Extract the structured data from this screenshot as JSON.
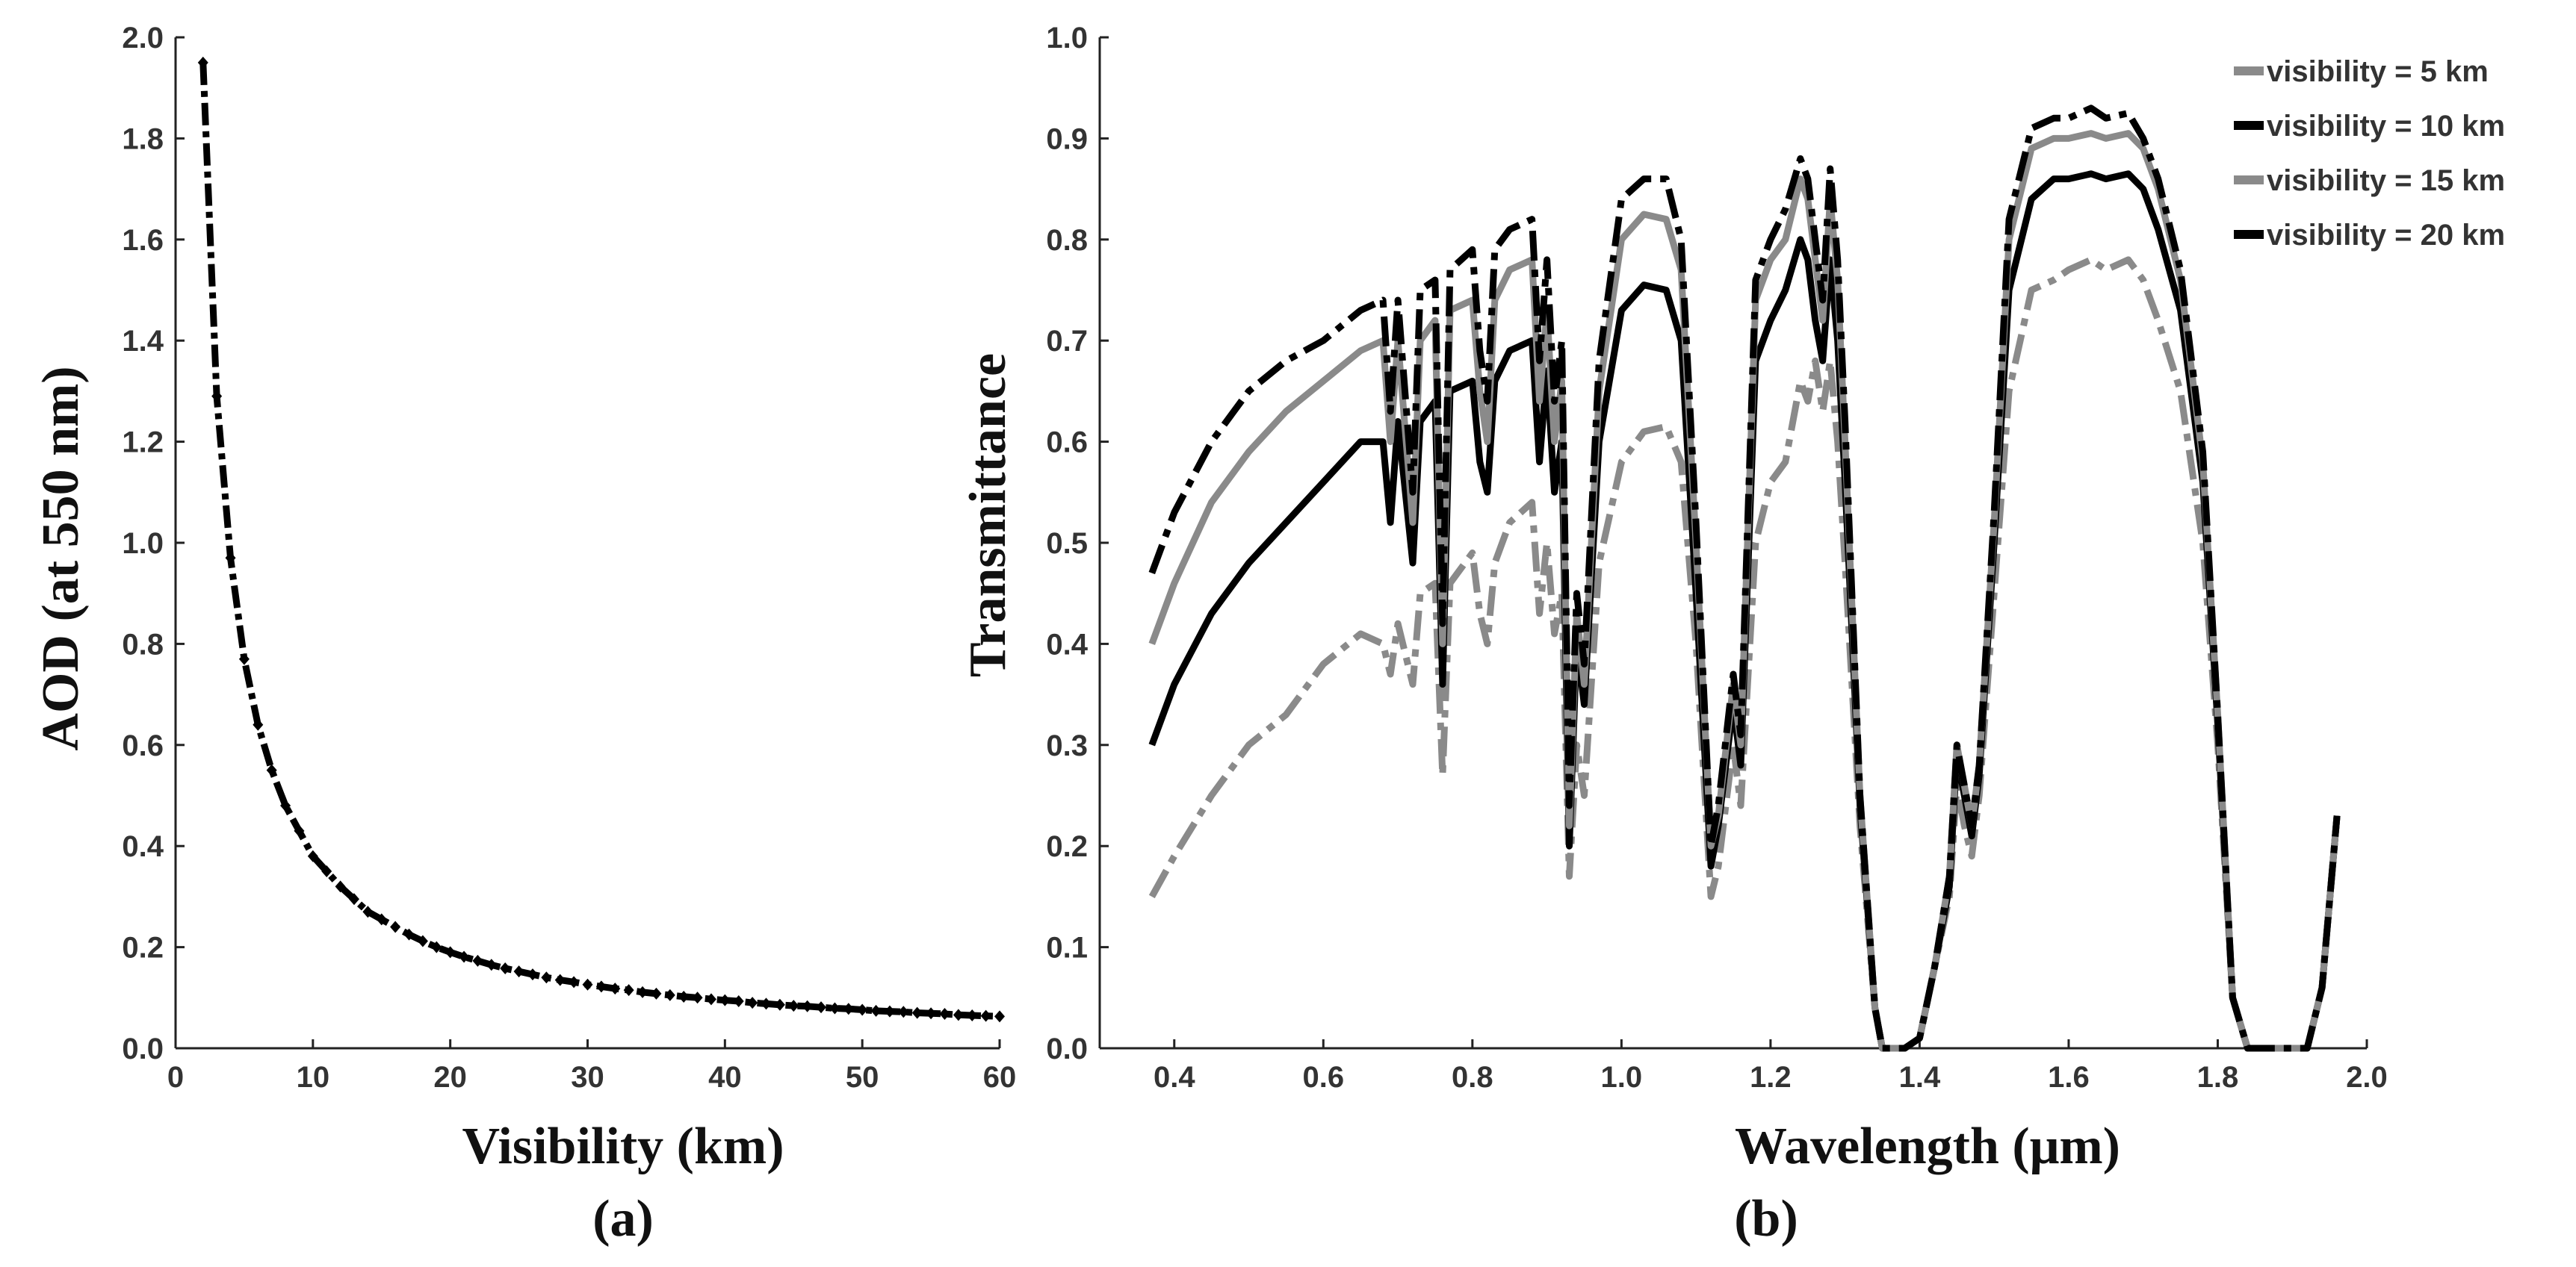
{
  "chart_data": [
    {
      "type": "line",
      "panel": "(a)",
      "xlabel": "Visibility (km)",
      "ylabel": "AOD (at 550 nm)",
      "xlim": [
        0,
        60
      ],
      "ylim": [
        0,
        2.0
      ],
      "xticks": [
        "0",
        "10",
        "20",
        "30",
        "40",
        "50",
        "60"
      ],
      "yticks": [
        "0.0",
        "0.2",
        "0.4",
        "0.6",
        "0.8",
        "1.0",
        "1.2",
        "1.4",
        "1.6",
        "1.8",
        "2.0"
      ],
      "series": [
        {
          "name": "AOD",
          "color": "#000000",
          "x": [
            2,
            3,
            4,
            5,
            6,
            7,
            8,
            9,
            10,
            11,
            12,
            13,
            14,
            15,
            16,
            17,
            18,
            19,
            20,
            21,
            22,
            23,
            24,
            25,
            26,
            27,
            28,
            29,
            30,
            31,
            32,
            33,
            34,
            35,
            36,
            37,
            38,
            39,
            40,
            41,
            42,
            43,
            44,
            45,
            46,
            47,
            48,
            49,
            50,
            51,
            52,
            53,
            54,
            55,
            56,
            57,
            58,
            59,
            60
          ],
          "y": [
            1.95,
            1.29,
            0.97,
            0.77,
            0.64,
            0.55,
            0.48,
            0.43,
            0.38,
            0.35,
            0.32,
            0.295,
            0.27,
            0.255,
            0.24,
            0.225,
            0.212,
            0.2,
            0.19,
            0.181,
            0.173,
            0.165,
            0.158,
            0.152,
            0.146,
            0.14,
            0.135,
            0.131,
            0.126,
            0.122,
            0.118,
            0.115,
            0.111,
            0.108,
            0.105,
            0.102,
            0.1,
            0.097,
            0.095,
            0.093,
            0.09,
            0.088,
            0.086,
            0.084,
            0.083,
            0.081,
            0.079,
            0.078,
            0.076,
            0.074,
            0.073,
            0.072,
            0.07,
            0.069,
            0.068,
            0.066,
            0.065,
            0.064,
            0.063
          ]
        }
      ]
    },
    {
      "type": "line",
      "panel": "(b)",
      "xlabel": "Wavelength (μm)",
      "ylabel": "Transmittance",
      "xlim": [
        0.3,
        2.0
      ],
      "ylim": [
        0,
        1.0
      ],
      "xticks": [
        "0.4",
        "0.6",
        "0.8",
        "1.0",
        "1.2",
        "1.4",
        "1.6",
        "1.8",
        "2.0"
      ],
      "yticks": [
        "0.0",
        "0.1",
        "0.2",
        "0.3",
        "0.4",
        "0.5",
        "0.6",
        "0.7",
        "0.8",
        "0.9",
        "1.0"
      ],
      "legend": [
        "visibility = 5 km",
        "visibility = 10 km",
        "visibility = 15 km",
        "visibility = 20 km"
      ],
      "legend_position": "top-right",
      "x": [
        0.37,
        0.4,
        0.45,
        0.5,
        0.55,
        0.6,
        0.65,
        0.68,
        0.69,
        0.7,
        0.72,
        0.73,
        0.75,
        0.76,
        0.77,
        0.8,
        0.81,
        0.82,
        0.83,
        0.85,
        0.88,
        0.89,
        0.9,
        0.91,
        0.92,
        0.93,
        0.94,
        0.95,
        0.97,
        1.0,
        1.03,
        1.06,
        1.08,
        1.1,
        1.12,
        1.13,
        1.15,
        1.16,
        1.18,
        1.2,
        1.22,
        1.24,
        1.25,
        1.26,
        1.27,
        1.28,
        1.29,
        1.3,
        1.32,
        1.34,
        1.35,
        1.36,
        1.38,
        1.4,
        1.42,
        1.44,
        1.45,
        1.46,
        1.47,
        1.48,
        1.5,
        1.52,
        1.55,
        1.58,
        1.6,
        1.63,
        1.65,
        1.68,
        1.7,
        1.72,
        1.75,
        1.78,
        1.8,
        1.82,
        1.84,
        1.86,
        1.88,
        1.9,
        1.92,
        1.94,
        1.96
      ],
      "series": [
        {
          "name": "visibility = 5 km",
          "color": "#8a8a8a",
          "values": [
            0.15,
            0.19,
            0.25,
            0.3,
            0.33,
            0.38,
            0.41,
            0.4,
            0.37,
            0.42,
            0.36,
            0.45,
            0.46,
            0.27,
            0.46,
            0.49,
            0.43,
            0.4,
            0.48,
            0.52,
            0.54,
            0.43,
            0.5,
            0.41,
            0.45,
            0.17,
            0.3,
            0.25,
            0.48,
            0.58,
            0.61,
            0.615,
            0.58,
            0.4,
            0.15,
            0.18,
            0.3,
            0.24,
            0.5,
            0.56,
            0.58,
            0.66,
            0.64,
            0.68,
            0.63,
            0.68,
            0.6,
            0.48,
            0.22,
            0.04,
            0.0,
            0.0,
            0.0,
            0.01,
            0.08,
            0.15,
            0.26,
            0.22,
            0.19,
            0.25,
            0.45,
            0.65,
            0.75,
            0.76,
            0.77,
            0.78,
            0.77,
            0.78,
            0.76,
            0.72,
            0.65,
            0.5,
            0.3,
            0.05,
            0.0,
            0.0,
            0.0,
            0.0,
            0.0,
            0.06,
            0.23
          ]
        },
        {
          "name": "visibility = 10 km",
          "color": "#000000",
          "values": [
            0.3,
            0.36,
            0.43,
            0.48,
            0.52,
            0.56,
            0.6,
            0.6,
            0.52,
            0.62,
            0.48,
            0.62,
            0.64,
            0.36,
            0.65,
            0.66,
            0.58,
            0.55,
            0.66,
            0.69,
            0.7,
            0.58,
            0.67,
            0.55,
            0.6,
            0.2,
            0.4,
            0.34,
            0.6,
            0.73,
            0.755,
            0.75,
            0.7,
            0.45,
            0.18,
            0.22,
            0.34,
            0.28,
            0.68,
            0.72,
            0.75,
            0.8,
            0.78,
            0.72,
            0.68,
            0.78,
            0.7,
            0.56,
            0.24,
            0.04,
            0.0,
            0.0,
            0.0,
            0.01,
            0.08,
            0.16,
            0.29,
            0.25,
            0.21,
            0.27,
            0.5,
            0.75,
            0.84,
            0.86,
            0.86,
            0.865,
            0.86,
            0.865,
            0.85,
            0.81,
            0.73,
            0.56,
            0.32,
            0.05,
            0.0,
            0.0,
            0.0,
            0.0,
            0.0,
            0.06,
            0.23
          ]
        },
        {
          "name": "visibility = 15 km",
          "color": "#8a8a8a",
          "values": [
            0.4,
            0.46,
            0.54,
            0.59,
            0.63,
            0.66,
            0.69,
            0.7,
            0.6,
            0.7,
            0.52,
            0.7,
            0.72,
            0.4,
            0.73,
            0.74,
            0.65,
            0.6,
            0.74,
            0.77,
            0.78,
            0.64,
            0.73,
            0.6,
            0.66,
            0.22,
            0.43,
            0.36,
            0.65,
            0.8,
            0.825,
            0.82,
            0.77,
            0.5,
            0.2,
            0.23,
            0.36,
            0.3,
            0.74,
            0.78,
            0.8,
            0.86,
            0.84,
            0.78,
            0.72,
            0.84,
            0.76,
            0.6,
            0.25,
            0.04,
            0.0,
            0.0,
            0.0,
            0.01,
            0.08,
            0.17,
            0.3,
            0.26,
            0.22,
            0.28,
            0.52,
            0.8,
            0.89,
            0.9,
            0.9,
            0.905,
            0.9,
            0.905,
            0.89,
            0.85,
            0.76,
            0.58,
            0.33,
            0.05,
            0.0,
            0.0,
            0.0,
            0.0,
            0.0,
            0.06,
            0.23
          ]
        },
        {
          "name": "visibility = 20 km",
          "color": "#000000",
          "values": [
            0.47,
            0.53,
            0.6,
            0.65,
            0.68,
            0.7,
            0.73,
            0.74,
            0.63,
            0.74,
            0.55,
            0.75,
            0.76,
            0.42,
            0.77,
            0.79,
            0.69,
            0.64,
            0.79,
            0.81,
            0.82,
            0.68,
            0.78,
            0.64,
            0.7,
            0.24,
            0.45,
            0.38,
            0.68,
            0.84,
            0.86,
            0.86,
            0.8,
            0.52,
            0.2,
            0.24,
            0.37,
            0.31,
            0.76,
            0.8,
            0.83,
            0.88,
            0.86,
            0.8,
            0.74,
            0.87,
            0.78,
            0.62,
            0.25,
            0.04,
            0.0,
            0.0,
            0.0,
            0.01,
            0.08,
            0.17,
            0.3,
            0.26,
            0.22,
            0.28,
            0.53,
            0.82,
            0.91,
            0.92,
            0.92,
            0.93,
            0.92,
            0.925,
            0.9,
            0.86,
            0.77,
            0.59,
            0.33,
            0.05,
            0.0,
            0.0,
            0.0,
            0.0,
            0.0,
            0.06,
            0.23
          ]
        }
      ]
    }
  ]
}
